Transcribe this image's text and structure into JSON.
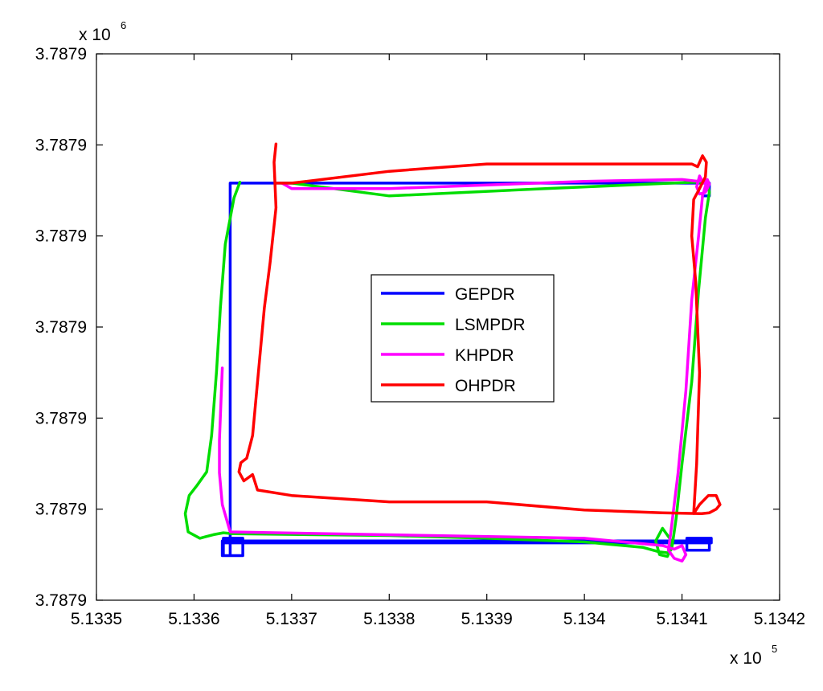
{
  "chart_data": {
    "type": "line",
    "title": "",
    "xlabel": "",
    "ylabel": "",
    "x_multiplier": "x 10",
    "x_exponent": "5",
    "y_multiplier": "x 10",
    "y_exponent": "6",
    "xlim": [
      5.1335,
      5.1342
    ],
    "ylim": [
      0,
      6
    ],
    "x_ticks": [
      {
        "v": 5.1335,
        "label": "5.1335"
      },
      {
        "v": 5.1336,
        "label": "5.1336"
      },
      {
        "v": 5.1337,
        "label": "5.1337"
      },
      {
        "v": 5.1338,
        "label": "5.1338"
      },
      {
        "v": 5.1339,
        "label": "5.1339"
      },
      {
        "v": 5.134,
        "label": "5.134"
      },
      {
        "v": 5.1341,
        "label": "5.1341"
      },
      {
        "v": 5.1342,
        "label": "5.1342"
      }
    ],
    "y_ticks": [
      {
        "v": 0,
        "label": "3.7879"
      },
      {
        "v": 1,
        "label": "3.7879"
      },
      {
        "v": 2,
        "label": "3.7879"
      },
      {
        "v": 3,
        "label": "3.7879"
      },
      {
        "v": 4,
        "label": "3.7879"
      },
      {
        "v": 5,
        "label": "3.7879"
      },
      {
        "v": 6,
        "label": "3.7879"
      }
    ],
    "grid": false,
    "legend_position": "center",
    "series": [
      {
        "name": "GEPDR",
        "color": "#0000ff",
        "x": [
          5.133637,
          5.133637,
          5.133629,
          5.13413,
          5.13413,
          5.134105,
          5.134105,
          5.134128,
          5.134128,
          5.133629,
          5.133629,
          5.13365,
          5.13365,
          5.13363,
          5.13363,
          5.133637,
          5.133637,
          5.134128,
          5.134128,
          5.134121
        ],
        "y": [
          4.24,
          0.63,
          0.63,
          0.63,
          0.68,
          0.68,
          0.55,
          0.55,
          0.65,
          0.65,
          0.49,
          0.49,
          0.68,
          0.68,
          0.49,
          0.49,
          4.58,
          4.58,
          4.44,
          4.44
        ]
      },
      {
        "name": "LSMPDR",
        "color": "#00dd00",
        "x": [
          5.133647,
          5.133641,
          5.133632,
          5.133627,
          5.133623,
          5.133618,
          5.133613,
          5.133603,
          5.133595,
          5.133591,
          5.133594,
          5.133606,
          5.13362,
          5.13363,
          5.13364,
          5.1338,
          5.1339,
          5.134,
          5.13406,
          5.134077,
          5.134086,
          5.13409,
          5.134088,
          5.13408,
          5.134073,
          5.134077,
          5.134085,
          5.13409,
          5.134094,
          5.1341,
          5.13411,
          5.134117,
          5.134124,
          5.134128,
          5.134126,
          5.134114,
          5.13409,
          5.13396,
          5.1338,
          5.1337,
          5.13369
        ],
        "y": [
          4.59,
          4.42,
          3.91,
          3.21,
          2.51,
          1.81,
          1.41,
          1.26,
          1.15,
          0.95,
          0.75,
          0.68,
          0.72,
          0.74,
          0.73,
          0.71,
          0.68,
          0.64,
          0.58,
          0.53,
          0.52,
          0.57,
          0.67,
          0.79,
          0.65,
          0.5,
          0.48,
          0.6,
          0.9,
          1.5,
          2.4,
          3.4,
          4.2,
          4.48,
          4.58,
          4.59,
          4.58,
          4.52,
          4.44,
          4.58,
          4.58
        ]
      },
      {
        "name": "KHPDR",
        "color": "#ff00ff",
        "x": [
          5.133629,
          5.133626,
          5.133626,
          5.133629,
          5.133637,
          5.134,
          5.13408,
          5.134092,
          5.1341,
          5.134104,
          5.1341,
          5.134092,
          5.134086,
          5.134088,
          5.134096,
          5.134104,
          5.13411,
          5.134117,
          5.134121,
          5.134124,
          5.134126,
          5.134122,
          5.134118,
          5.134115,
          5.134118,
          5.134124,
          5.134128,
          5.134126,
          5.134117,
          5.1341,
          5.134,
          5.1338,
          5.1337,
          5.13369
        ],
        "y": [
          2.55,
          1.75,
          1.4,
          1.05,
          0.75,
          0.68,
          0.6,
          0.56,
          0.6,
          0.5,
          0.43,
          0.46,
          0.55,
          0.7,
          1.4,
          2.3,
          3.3,
          4.0,
          4.44,
          4.55,
          4.6,
          4.58,
          4.66,
          4.54,
          4.46,
          4.48,
          4.57,
          4.62,
          4.6,
          4.62,
          4.6,
          4.52,
          4.52,
          4.58
        ]
      },
      {
        "name": "OHPDR",
        "color": "#ff0000",
        "x": [
          5.133684,
          5.133682,
          5.133684,
          5.133678,
          5.133672,
          5.133666,
          5.13366,
          5.133654,
          5.133648,
          5.133646,
          5.133651,
          5.13366,
          5.133665,
          5.1337,
          5.1338,
          5.1339,
          5.134,
          5.13408,
          5.13412,
          5.134128,
          5.134135,
          5.134139,
          5.134135,
          5.134127,
          5.134118,
          5.134112,
          5.134115,
          5.134118,
          5.134114,
          5.13411,
          5.134112,
          5.134118,
          5.134124,
          5.134125,
          5.134121,
          5.134116,
          5.13411,
          5.1339,
          5.1338,
          5.1337,
          5.133684
        ],
        "y": [
          5.01,
          4.81,
          4.31,
          3.71,
          3.21,
          2.51,
          1.81,
          1.56,
          1.51,
          1.41,
          1.31,
          1.38,
          1.21,
          1.15,
          1.08,
          1.08,
          0.99,
          0.96,
          0.95,
          0.96,
          1.0,
          1.05,
          1.15,
          1.15,
          1.05,
          0.95,
          1.5,
          2.5,
          3.5,
          4.0,
          4.4,
          4.52,
          4.65,
          4.81,
          4.88,
          4.76,
          4.79,
          4.79,
          4.71,
          4.58,
          4.58
        ]
      }
    ]
  }
}
